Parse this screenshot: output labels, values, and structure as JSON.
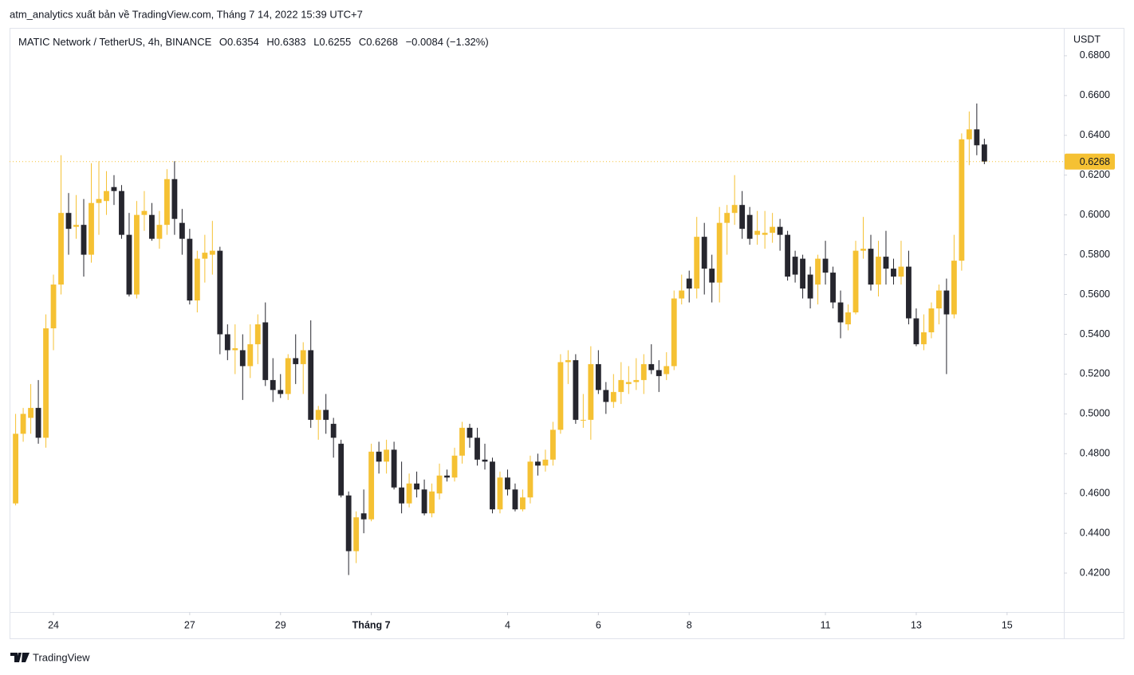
{
  "publisher_line": "atm_analytics xuất bản về TradingView.com, Tháng 7 14, 2022 15:39 UTC+7",
  "footer_logo": "TradingView",
  "chart_data": {
    "type": "candlestick",
    "title": "MATIC Network / TetherUS, 4h, BINANCE",
    "ohlc_labels": [
      "O",
      "H",
      "L",
      "C"
    ],
    "change_text": "−0.0084 (−1.32%)",
    "y_axis_label": "USDT",
    "up_color": "#f5c133",
    "down_color": "#26262e",
    "xlim": [
      -0.8,
      138.5
    ],
    "xticks": [
      {
        "value": 5,
        "label": "24"
      },
      {
        "value": 23,
        "label": "27"
      },
      {
        "value": 35,
        "label": "29"
      },
      {
        "value": 47,
        "label": "Tháng 7"
      },
      {
        "value": 65,
        "label": "4"
      },
      {
        "value": 77,
        "label": "6"
      },
      {
        "value": 89,
        "label": "8"
      },
      {
        "value": 107,
        "label": "11"
      },
      {
        "value": 119,
        "label": "13"
      },
      {
        "value": 131,
        "label": "15"
      }
    ],
    "ylim": [
      0.4004,
      0.694
    ],
    "yticks": [
      {
        "value": 0.42,
        "label": "0.4200"
      },
      {
        "value": 0.44,
        "label": "0.4400"
      },
      {
        "value": 0.46,
        "label": "0.4600"
      },
      {
        "value": 0.48,
        "label": "0.4800"
      },
      {
        "value": 0.5,
        "label": "0.5000"
      },
      {
        "value": 0.52,
        "label": "0.5200"
      },
      {
        "value": 0.54,
        "label": "0.5400"
      },
      {
        "value": 0.56,
        "label": "0.5600"
      },
      {
        "value": 0.58,
        "label": "0.5800"
      },
      {
        "value": 0.6,
        "label": "0.6000"
      },
      {
        "value": 0.62,
        "label": "0.6200"
      },
      {
        "value": 0.64,
        "label": "0.6400"
      },
      {
        "value": 0.66,
        "label": "0.6600"
      },
      {
        "value": 0.68,
        "label": "0.6800"
      }
    ],
    "values": [
      [
        0.455,
        0.5,
        0.454,
        0.49
      ],
      [
        0.49,
        0.503,
        0.486,
        0.5
      ],
      [
        0.498,
        0.515,
        0.49,
        0.503
      ],
      [
        0.503,
        0.517,
        0.485,
        0.488
      ],
      [
        0.488,
        0.55,
        0.483,
        0.543
      ],
      [
        0.543,
        0.57,
        0.532,
        0.565
      ],
      [
        0.565,
        0.63,
        0.56,
        0.601
      ],
      [
        0.601,
        0.611,
        0.58,
        0.593
      ],
      [
        0.594,
        0.61,
        0.588,
        0.595
      ],
      [
        0.595,
        0.608,
        0.569,
        0.58
      ],
      [
        0.58,
        0.626,
        0.576,
        0.606
      ],
      [
        0.606,
        0.627,
        0.59,
        0.608
      ],
      [
        0.607,
        0.622,
        0.6,
        0.612
      ],
      [
        0.614,
        0.62,
        0.605,
        0.612
      ],
      [
        0.612,
        0.615,
        0.588,
        0.59
      ],
      [
        0.59,
        0.601,
        0.559,
        0.56
      ],
      [
        0.56,
        0.607,
        0.558,
        0.6
      ],
      [
        0.6,
        0.612,
        0.592,
        0.602
      ],
      [
        0.6,
        0.606,
        0.587,
        0.588
      ],
      [
        0.588,
        0.602,
        0.583,
        0.595
      ],
      [
        0.595,
        0.623,
        0.59,
        0.618
      ],
      [
        0.618,
        0.627,
        0.59,
        0.598
      ],
      [
        0.596,
        0.603,
        0.58,
        0.588
      ],
      [
        0.588,
        0.593,
        0.555,
        0.557
      ],
      [
        0.557,
        0.582,
        0.551,
        0.578
      ],
      [
        0.578,
        0.59,
        0.566,
        0.581
      ],
      [
        0.58,
        0.597,
        0.57,
        0.582
      ],
      [
        0.582,
        0.584,
        0.53,
        0.54
      ],
      [
        0.54,
        0.545,
        0.527,
        0.532
      ],
      [
        0.532,
        0.545,
        0.52,
        0.533
      ],
      [
        0.532,
        0.54,
        0.507,
        0.524
      ],
      [
        0.524,
        0.545,
        0.518,
        0.535
      ],
      [
        0.535,
        0.55,
        0.525,
        0.545
      ],
      [
        0.546,
        0.556,
        0.514,
        0.517
      ],
      [
        0.517,
        0.528,
        0.506,
        0.512
      ],
      [
        0.512,
        0.52,
        0.508,
        0.51
      ],
      [
        0.51,
        0.53,
        0.507,
        0.528
      ],
      [
        0.528,
        0.54,
        0.515,
        0.525
      ],
      [
        0.525,
        0.536,
        0.51,
        0.532
      ],
      [
        0.532,
        0.547,
        0.493,
        0.497
      ],
      [
        0.497,
        0.504,
        0.487,
        0.502
      ],
      [
        0.502,
        0.51,
        0.49,
        0.497
      ],
      [
        0.495,
        0.498,
        0.478,
        0.488
      ],
      [
        0.485,
        0.487,
        0.458,
        0.459
      ],
      [
        0.459,
        0.461,
        0.419,
        0.431
      ],
      [
        0.431,
        0.451,
        0.425,
        0.448
      ],
      [
        0.45,
        0.462,
        0.44,
        0.447
      ],
      [
        0.447,
        0.485,
        0.446,
        0.481
      ],
      [
        0.481,
        0.486,
        0.47,
        0.476
      ],
      [
        0.476,
        0.487,
        0.47,
        0.482
      ],
      [
        0.482,
        0.486,
        0.462,
        0.463
      ],
      [
        0.463,
        0.476,
        0.45,
        0.455
      ],
      [
        0.455,
        0.47,
        0.453,
        0.465
      ],
      [
        0.465,
        0.471,
        0.458,
        0.462
      ],
      [
        0.462,
        0.467,
        0.449,
        0.45
      ],
      [
        0.45,
        0.465,
        0.448,
        0.461
      ],
      [
        0.46,
        0.475,
        0.457,
        0.469
      ],
      [
        0.469,
        0.472,
        0.466,
        0.468
      ],
      [
        0.468,
        0.483,
        0.466,
        0.479
      ],
      [
        0.479,
        0.496,
        0.475,
        0.493
      ],
      [
        0.493,
        0.495,
        0.483,
        0.488
      ],
      [
        0.488,
        0.493,
        0.474,
        0.477
      ],
      [
        0.477,
        0.485,
        0.472,
        0.476
      ],
      [
        0.476,
        0.478,
        0.45,
        0.452
      ],
      [
        0.452,
        0.471,
        0.45,
        0.468
      ],
      [
        0.468,
        0.472,
        0.459,
        0.462
      ],
      [
        0.462,
        0.465,
        0.451,
        0.452
      ],
      [
        0.452,
        0.462,
        0.451,
        0.458
      ],
      [
        0.458,
        0.479,
        0.455,
        0.476
      ],
      [
        0.476,
        0.48,
        0.469,
        0.474
      ],
      [
        0.474,
        0.482,
        0.471,
        0.477
      ],
      [
        0.477,
        0.496,
        0.474,
        0.492
      ],
      [
        0.492,
        0.53,
        0.49,
        0.526
      ],
      [
        0.526,
        0.532,
        0.515,
        0.527
      ],
      [
        0.527,
        0.53,
        0.495,
        0.497
      ],
      [
        0.497,
        0.51,
        0.493,
        0.497
      ],
      [
        0.497,
        0.534,
        0.487,
        0.525
      ],
      [
        0.525,
        0.532,
        0.51,
        0.512
      ],
      [
        0.512,
        0.516,
        0.5,
        0.506
      ],
      [
        0.506,
        0.52,
        0.503,
        0.511
      ],
      [
        0.511,
        0.526,
        0.505,
        0.517
      ],
      [
        0.515,
        0.524,
        0.51,
        0.516
      ],
      [
        0.516,
        0.528,
        0.512,
        0.517
      ],
      [
        0.517,
        0.53,
        0.51,
        0.525
      ],
      [
        0.525,
        0.535,
        0.52,
        0.522
      ],
      [
        0.522,
        0.527,
        0.511,
        0.519
      ],
      [
        0.52,
        0.531,
        0.517,
        0.524
      ],
      [
        0.524,
        0.562,
        0.522,
        0.558
      ],
      [
        0.558,
        0.57,
        0.555,
        0.562
      ],
      [
        0.568,
        0.572,
        0.556,
        0.563
      ],
      [
        0.563,
        0.599,
        0.558,
        0.589
      ],
      [
        0.589,
        0.596,
        0.56,
        0.573
      ],
      [
        0.573,
        0.58,
        0.556,
        0.566
      ],
      [
        0.566,
        0.604,
        0.556,
        0.596
      ],
      [
        0.596,
        0.605,
        0.58,
        0.601
      ],
      [
        0.601,
        0.62,
        0.595,
        0.605
      ],
      [
        0.605,
        0.612,
        0.588,
        0.593
      ],
      [
        0.6,
        0.604,
        0.585,
        0.588
      ],
      [
        0.59,
        0.602,
        0.585,
        0.592
      ],
      [
        0.59,
        0.602,
        0.583,
        0.591
      ],
      [
        0.591,
        0.601,
        0.586,
        0.594
      ],
      [
        0.594,
        0.598,
        0.582,
        0.59
      ],
      [
        0.59,
        0.592,
        0.567,
        0.569
      ],
      [
        0.579,
        0.582,
        0.566,
        0.57
      ],
      [
        0.578,
        0.58,
        0.558,
        0.563
      ],
      [
        0.57,
        0.574,
        0.553,
        0.558
      ],
      [
        0.565,
        0.58,
        0.555,
        0.578
      ],
      [
        0.578,
        0.587,
        0.565,
        0.571
      ],
      [
        0.571,
        0.574,
        0.553,
        0.556
      ],
      [
        0.556,
        0.562,
        0.538,
        0.546
      ],
      [
        0.545,
        0.555,
        0.542,
        0.551
      ],
      [
        0.551,
        0.587,
        0.55,
        0.582
      ],
      [
        0.582,
        0.599,
        0.578,
        0.583
      ],
      [
        0.583,
        0.59,
        0.562,
        0.565
      ],
      [
        0.565,
        0.587,
        0.559,
        0.579
      ],
      [
        0.579,
        0.592,
        0.565,
        0.573
      ],
      [
        0.573,
        0.578,
        0.565,
        0.569
      ],
      [
        0.569,
        0.587,
        0.565,
        0.574
      ],
      [
        0.574,
        0.582,
        0.545,
        0.548
      ],
      [
        0.548,
        0.553,
        0.534,
        0.535
      ],
      [
        0.535,
        0.55,
        0.532,
        0.541
      ],
      [
        0.541,
        0.556,
        0.538,
        0.553
      ],
      [
        0.553,
        0.565,
        0.545,
        0.562
      ],
      [
        0.562,
        0.568,
        0.52,
        0.55
      ],
      [
        0.55,
        0.59,
        0.548,
        0.577
      ],
      [
        0.577,
        0.641,
        0.572,
        0.638
      ],
      [
        0.638,
        0.652,
        0.625,
        0.643
      ],
      [
        0.643,
        0.656,
        0.63,
        0.635
      ],
      [
        0.6354,
        0.6383,
        0.6255,
        0.6268
      ]
    ]
  }
}
